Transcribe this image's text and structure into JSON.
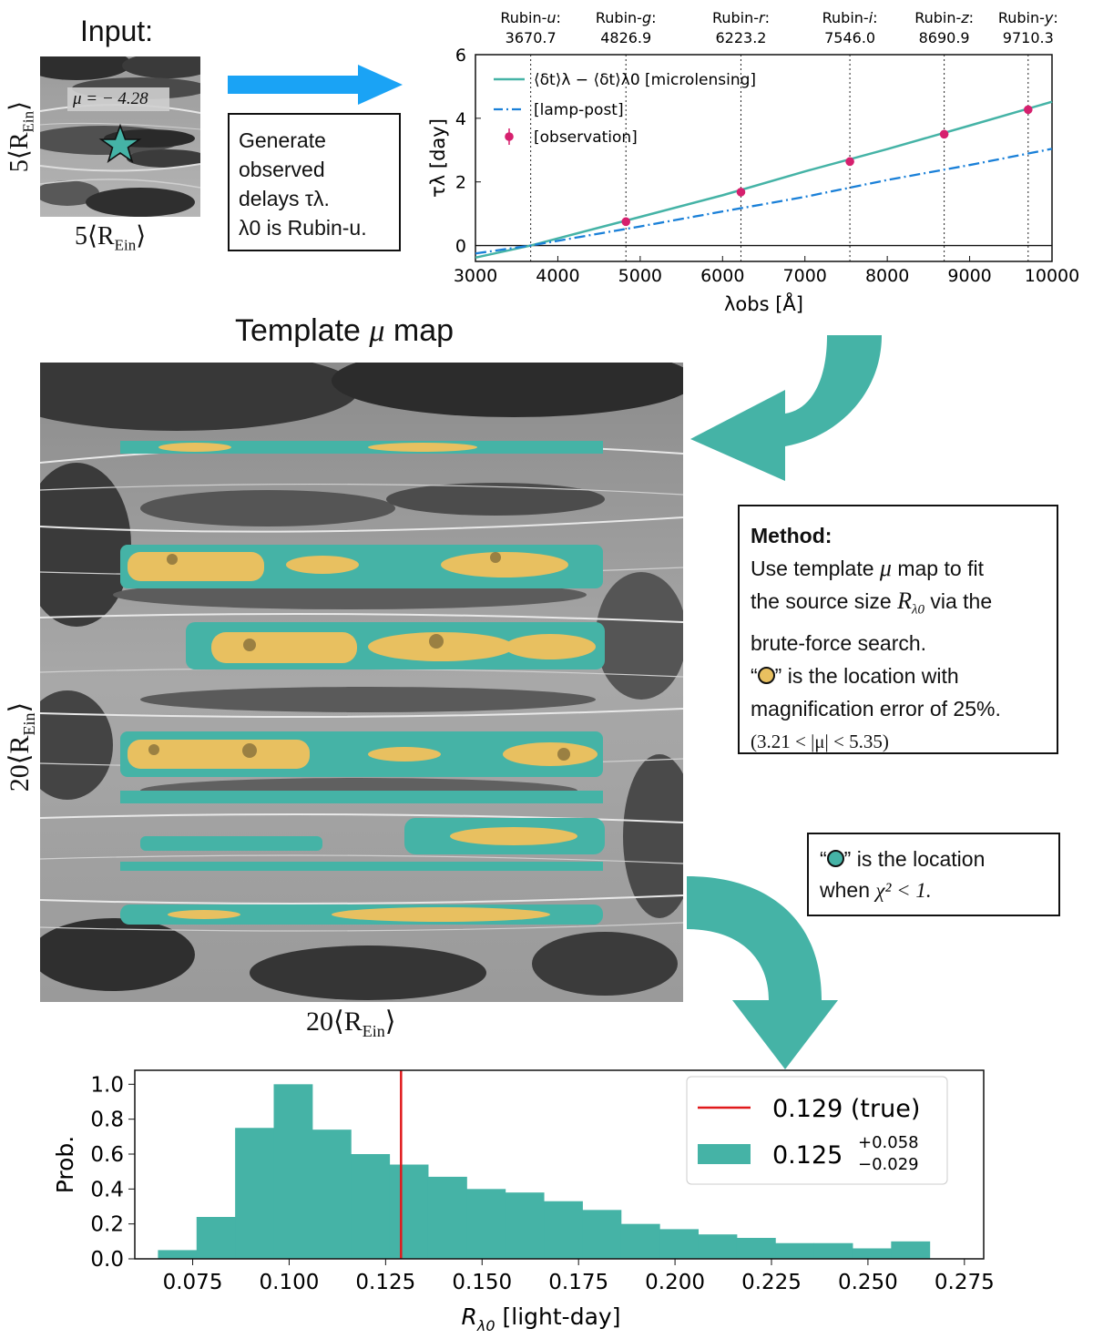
{
  "input": {
    "title": "Input:",
    "mu_label": "μ = − 4.28",
    "axis_left": "5⟨R",
    "axis_bottom": "5⟨R",
    "axis_sub": "Ein",
    "axis_close": "⟩"
  },
  "generate_box": {
    "line1": "Generate",
    "line2": "observed",
    "line3": "delays τλ.",
    "line4": "λ0 is Rubin-u."
  },
  "template": {
    "title_prefix": "Template ",
    "title_mu": "μ",
    "title_suffix": " map",
    "axis_left": "20⟨R",
    "axis_bottom": "20⟨R",
    "axis_sub": "Ein",
    "axis_close": "⟩"
  },
  "method_box": {
    "heading": "Method:",
    "line1a": "Use template ",
    "line1mu": "μ",
    "line1b": " map to fit",
    "line2a": "the source size ",
    "line2R": "R",
    "line2sub": "λ0",
    "line2b": " via the",
    "line3": "brute-force search.",
    "line4a": "“",
    "line4b": "” is the location with",
    "line5": "magnification error of 25%.",
    "line6": "(3.21 < |μ| < 5.35)"
  },
  "chi_box": {
    "line1a": "“",
    "line1b": "” is the location",
    "line2a": "when ",
    "line2chi": "χ² < 1."
  },
  "colors": {
    "teal": "#45b3a6",
    "gold": "#e8c060",
    "blue_arrow": "#1aa3f5",
    "red": "#e0191b",
    "magenta": "#d6206e",
    "dashdot": "#1a80d8"
  },
  "chart_data": [
    {
      "type": "line",
      "xlabel": "λobs [Å]",
      "ylabel": "τλ [day]",
      "xlim": [
        3000,
        10000
      ],
      "ylim": [
        -0.5,
        6
      ],
      "xticks": [
        3000,
        4000,
        5000,
        6000,
        7000,
        8000,
        9000,
        10000
      ],
      "yticks": [
        0,
        2,
        4,
        6
      ],
      "filters": [
        {
          "name": "Rubin-",
          "band": "u",
          "colon": ":",
          "wavelength": 3670.7
        },
        {
          "name": "Rubin-",
          "band": "g",
          "colon": ":",
          "wavelength": 4826.9
        },
        {
          "name": "Rubin-",
          "band": "r",
          "colon": ":",
          "wavelength": 6223.2
        },
        {
          "name": "Rubin-",
          "band": "i",
          "colon": ":",
          "wavelength": 7546.0
        },
        {
          "name": "Rubin-",
          "band": "z",
          "colon": ":",
          "wavelength": 8690.9
        },
        {
          "name": "Rubin-",
          "band": "y",
          "colon": ":",
          "wavelength": 9710.3
        }
      ],
      "legend": [
        {
          "label": "⟨δt⟩λ − ⟨δt⟩λ0 [microlensing]",
          "style": "solid"
        },
        {
          "label": "[lamp-post]",
          "style": "dashdot"
        },
        {
          "label": "[observation]",
          "style": "marker"
        }
      ],
      "series": [
        {
          "name": "microlensing",
          "x": [
            3000,
            3670.7,
            5000,
            6000,
            7000,
            8000,
            9000,
            10000
          ],
          "y": [
            -0.38,
            0.0,
            0.9,
            1.58,
            2.33,
            3.03,
            3.77,
            4.52
          ]
        },
        {
          "name": "lamp-post",
          "x": [
            3000,
            3670.7,
            5000,
            6000,
            7000,
            8000,
            9000,
            10000
          ],
          "y": [
            -0.25,
            0.0,
            0.6,
            1.07,
            1.53,
            2.06,
            2.53,
            3.04
          ]
        },
        {
          "name": "observation",
          "x": [
            4826.9,
            6223.2,
            7546.0,
            8690.9,
            9710.3
          ],
          "y": [
            0.75,
            1.68,
            2.64,
            3.5,
            4.27
          ]
        }
      ]
    },
    {
      "type": "bar",
      "xlabel": "R",
      "xlabel_sub": "λ0",
      "xlabel_unit": " [light-day]",
      "ylabel": "Prob.",
      "xlim": [
        0.06,
        0.28
      ],
      "ylim": [
        0,
        1.08
      ],
      "xticks": [
        0.075,
        0.1,
        0.125,
        0.15,
        0.175,
        0.2,
        0.225,
        0.25,
        0.275
      ],
      "xtick_labels": [
        "0.075",
        "0.100",
        "0.125",
        "0.150",
        "0.175",
        "0.200",
        "0.225",
        "0.250",
        "0.275"
      ],
      "yticks": [
        0.0,
        0.2,
        0.4,
        0.6,
        0.8,
        1.0
      ],
      "ytick_labels": [
        "0.0",
        "0.2",
        "0.4",
        "0.6",
        "0.8",
        "1.0"
      ],
      "bin_edges": [
        0.066,
        0.076,
        0.086,
        0.096,
        0.106,
        0.116,
        0.126,
        0.136,
        0.146,
        0.156,
        0.166,
        0.176,
        0.186,
        0.196,
        0.206,
        0.216,
        0.226,
        0.236,
        0.246,
        0.256,
        0.266
      ],
      "values": [
        0.05,
        0.24,
        0.75,
        1.0,
        0.74,
        0.6,
        0.54,
        0.47,
        0.4,
        0.38,
        0.33,
        0.28,
        0.2,
        0.17,
        0.14,
        0.12,
        0.09,
        0.09,
        0.06,
        0.1
      ],
      "true_value": 0.129,
      "legend": [
        {
          "label": "0.129 (true)"
        },
        {
          "label": "0.125",
          "sup": "+0.058",
          "sub": "−0.029"
        }
      ]
    }
  ]
}
